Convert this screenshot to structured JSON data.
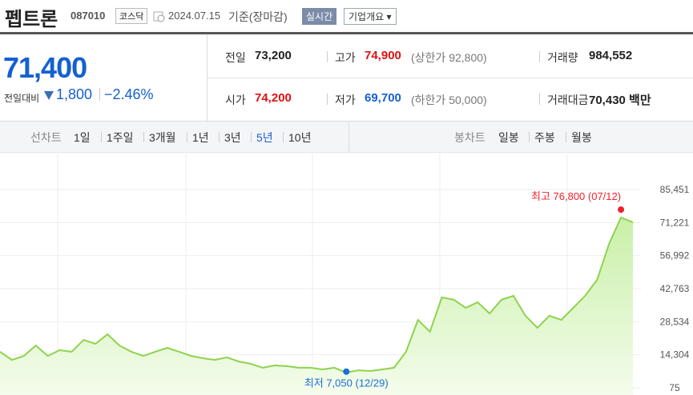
{
  "header": {
    "name": "펩트론",
    "code": "087010",
    "market": "코스닥",
    "date": "2024.07.15",
    "basis": "기준(장마감)",
    "realtime": "실시간",
    "company": "기업개요"
  },
  "price": {
    "current": "71,400",
    "change_label": "전일대비",
    "change": "1,800",
    "change_rate": "−2.46%"
  },
  "info": {
    "rows": [
      [
        {
          "label": "전일",
          "value": "73,200"
        },
        {
          "label": "고가",
          "value": "74,900",
          "note": "(상한가 92,800)"
        },
        {
          "label": "거래량",
          "value": "984,552"
        }
      ],
      [
        {
          "label": "시가",
          "value": "74,200"
        },
        {
          "label": "저가",
          "value": "69,700",
          "note": "(하한가 50,000)"
        },
        {
          "label": "거래대금",
          "value": "70,430 백만"
        }
      ]
    ]
  },
  "tabs": {
    "line_label": "선차트",
    "line_periods": [
      "1일",
      "1주일",
      "3개월",
      "1년",
      "3년",
      "5년",
      "10년"
    ],
    "selected": "5년",
    "candle_label": "봉차트",
    "candle_periods": [
      "일봉",
      "주봉",
      "월봉"
    ]
  },
  "chart_data": {
    "type": "line",
    "color": "#8ed34e",
    "values": [
      15600,
      12100,
      13800,
      18300,
      13800,
      16300,
      15600,
      20700,
      19000,
      23100,
      18300,
      15600,
      13800,
      15600,
      17300,
      15600,
      13800,
      12800,
      12100,
      13200,
      11400,
      10400,
      8700,
      9700,
      9400,
      8700,
      8700,
      8000,
      8700,
      6600,
      7600,
      7300,
      8000,
      8700,
      15600,
      29300,
      24200,
      39000,
      38000,
      34500,
      36900,
      32100,
      38000,
      39700,
      31100,
      25900,
      31100,
      29300,
      34500,
      39700,
      46600,
      62000,
      73400,
      71300
    ],
    "ylim": [
      75,
      85451
    ],
    "yticks": [
      {
        "value": 75,
        "label": "75"
      },
      {
        "value": 14304,
        "label": "14,304"
      },
      {
        "value": 28534,
        "label": "28,534"
      },
      {
        "value": 42763,
        "label": "42,763"
      },
      {
        "value": 56992,
        "label": "56,992"
      },
      {
        "value": 71221,
        "label": "71,221"
      },
      {
        "value": 85451,
        "label": "85,451"
      }
    ],
    "grid": true,
    "annotations": [
      {
        "label": "최고 76,800 (07/12)",
        "value": 76800,
        "color": "#f0202a"
      },
      {
        "label": "최저 7,050 (12/29)",
        "value": 7050,
        "color": "#1a6fd8"
      }
    ]
  }
}
